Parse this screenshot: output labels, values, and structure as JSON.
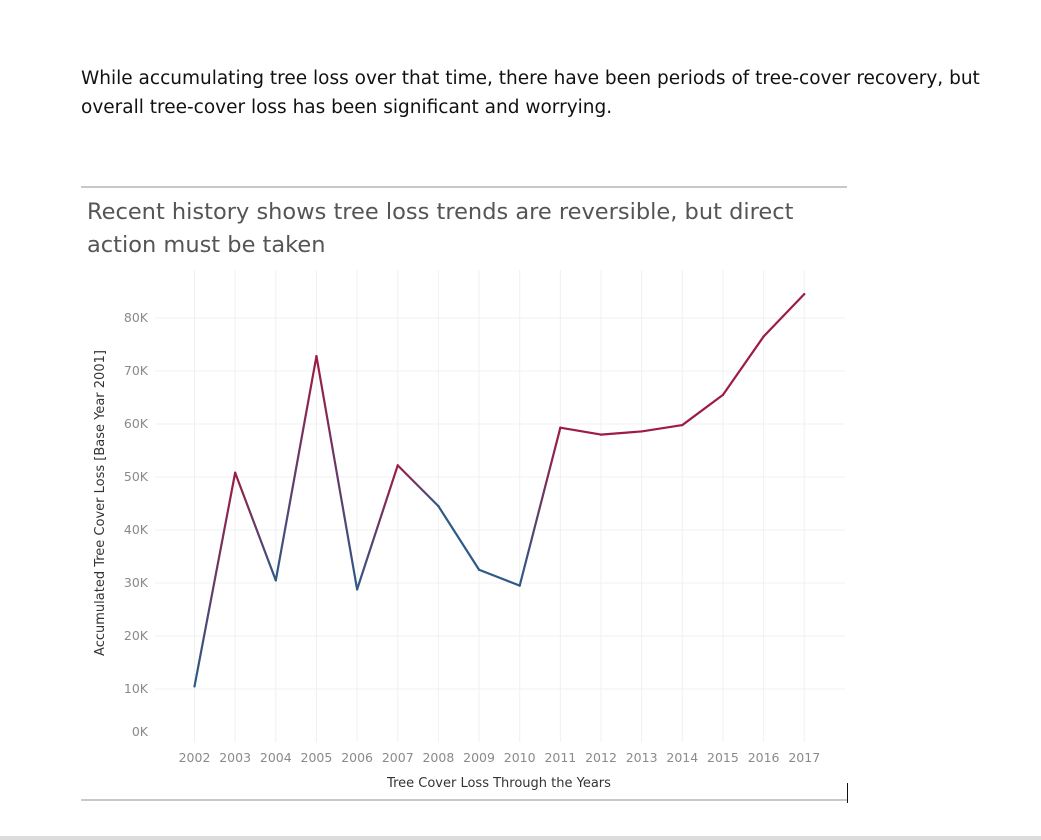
{
  "intro_text": "While accumulating tree loss over that time, there have been periods of tree-cover recovery, but overall tree-cover loss has been significant and worrying.",
  "chart_data": {
    "type": "line",
    "title": "Recent history shows tree loss trends are reversible, but direct action must be taken",
    "xlabel": "Tree Cover Loss Through the Years",
    "ylabel": "Accumulated Tree Cover Loss [Base Year 2001]",
    "x": [
      "2002",
      "2003",
      "2004",
      "2005",
      "2006",
      "2007",
      "2008",
      "2009",
      "2010",
      "2011",
      "2012",
      "2013",
      "2014",
      "2015",
      "2016",
      "2017"
    ],
    "values": [
      10500,
      50800,
      30500,
      72800,
      28800,
      52200,
      44500,
      32500,
      29500,
      59300,
      58000,
      58600,
      59800,
      65500,
      76500,
      84500
    ],
    "yticks": [
      "0K",
      "10K",
      "20K",
      "30K",
      "40K",
      "50K",
      "60K",
      "70K",
      "80K"
    ],
    "ylim": [
      0,
      90000
    ],
    "grid": true,
    "legend": "none",
    "colors": {
      "rising": "#9e1b45",
      "falling": "#2e5a87"
    }
  }
}
